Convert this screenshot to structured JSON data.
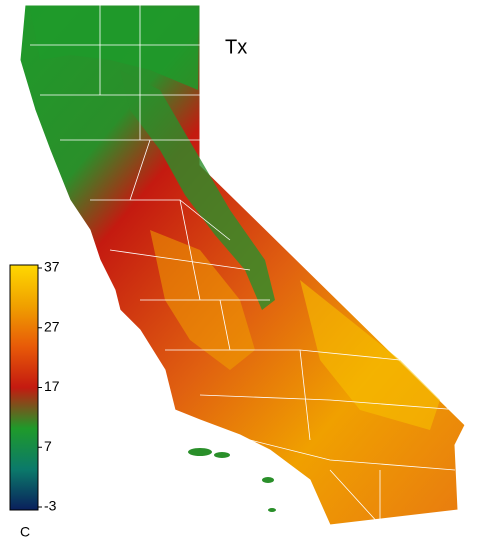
{
  "map": {
    "title": "Tx",
    "colorbar": {
      "unit": "C",
      "lim": [
        -3,
        37
      ],
      "ticks": [
        -3,
        7,
        17,
        27,
        37
      ],
      "colors": [
        "#0a1f5c",
        "#0b7a6a",
        "#1f9a2a",
        "#c41a10",
        "#e85a08",
        "#f0a000",
        "#ffd800"
      ]
    }
  }
}
